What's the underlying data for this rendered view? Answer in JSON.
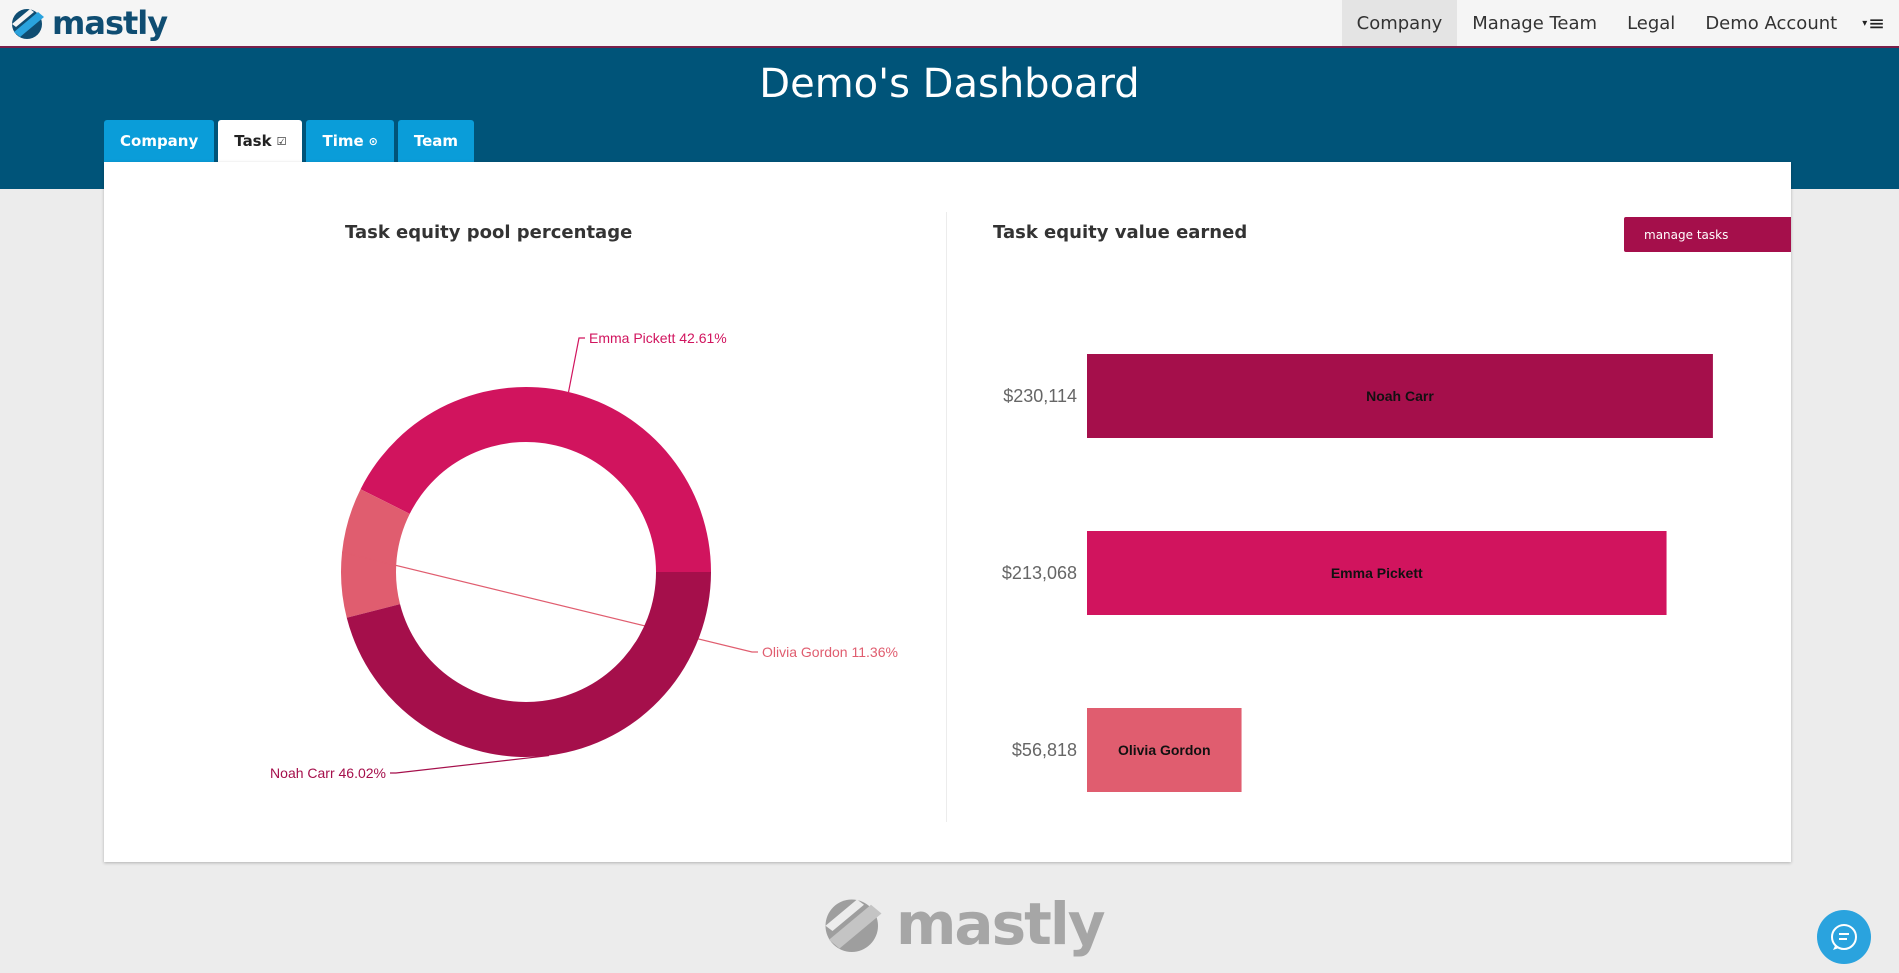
{
  "brand": {
    "name": "mastly"
  },
  "nav": {
    "items": [
      {
        "label": "Company",
        "active": true
      },
      {
        "label": "Manage Team",
        "active": false
      },
      {
        "label": "Legal",
        "active": false
      },
      {
        "label": "Demo Account",
        "active": false
      }
    ],
    "menu_icon": "hamburger-menu-icon"
  },
  "header": {
    "title": "Demo's Dashboard"
  },
  "tabs": [
    {
      "label": "Company",
      "icon": "",
      "active": false
    },
    {
      "label": "Task",
      "icon": "check-square-icon",
      "active": true
    },
    {
      "label": "Time",
      "icon": "clock-icon",
      "active": false
    },
    {
      "label": "Team",
      "icon": "",
      "active": false
    }
  ],
  "left_panel": {
    "title": "Task equity pool percentage"
  },
  "right_panel": {
    "title": "Task equity value earned",
    "manage_button": "manage tasks"
  },
  "colors": {
    "noah": "#a50f4b",
    "emma": "#d1145e",
    "olivia": "#e05d6f",
    "header": "#005479",
    "tab": "#0a9dd9"
  },
  "chart_data": [
    {
      "type": "pie",
      "title": "Task equity pool percentage",
      "donut": true,
      "slices": [
        {
          "label": "Emma Pickett 42.61%",
          "name": "Emma Pickett",
          "value": 42.61,
          "color": "#d1145e"
        },
        {
          "label": "Olivia Gordon 11.36%",
          "name": "Olivia Gordon",
          "value": 11.36,
          "color": "#e05d6f"
        },
        {
          "label": "Noah Carr 46.02%",
          "name": "Noah Carr",
          "value": 46.02,
          "color": "#a50f4b"
        }
      ]
    },
    {
      "type": "bar",
      "orientation": "horizontal",
      "title": "Task equity value earned",
      "categories": [
        "$230,114",
        "$213,068",
        "$56,818"
      ],
      "bar_labels": [
        "Noah Carr",
        "Emma Pickett",
        "Olivia Gordon"
      ],
      "values": [
        230114,
        213068,
        56818
      ],
      "colors": [
        "#a50f4b",
        "#d1145e",
        "#e05d6f"
      ],
      "xlim": [
        0,
        250000
      ]
    }
  ],
  "footer": {
    "logo_text": "mastly"
  },
  "chat": {
    "icon": "chat-icon"
  }
}
